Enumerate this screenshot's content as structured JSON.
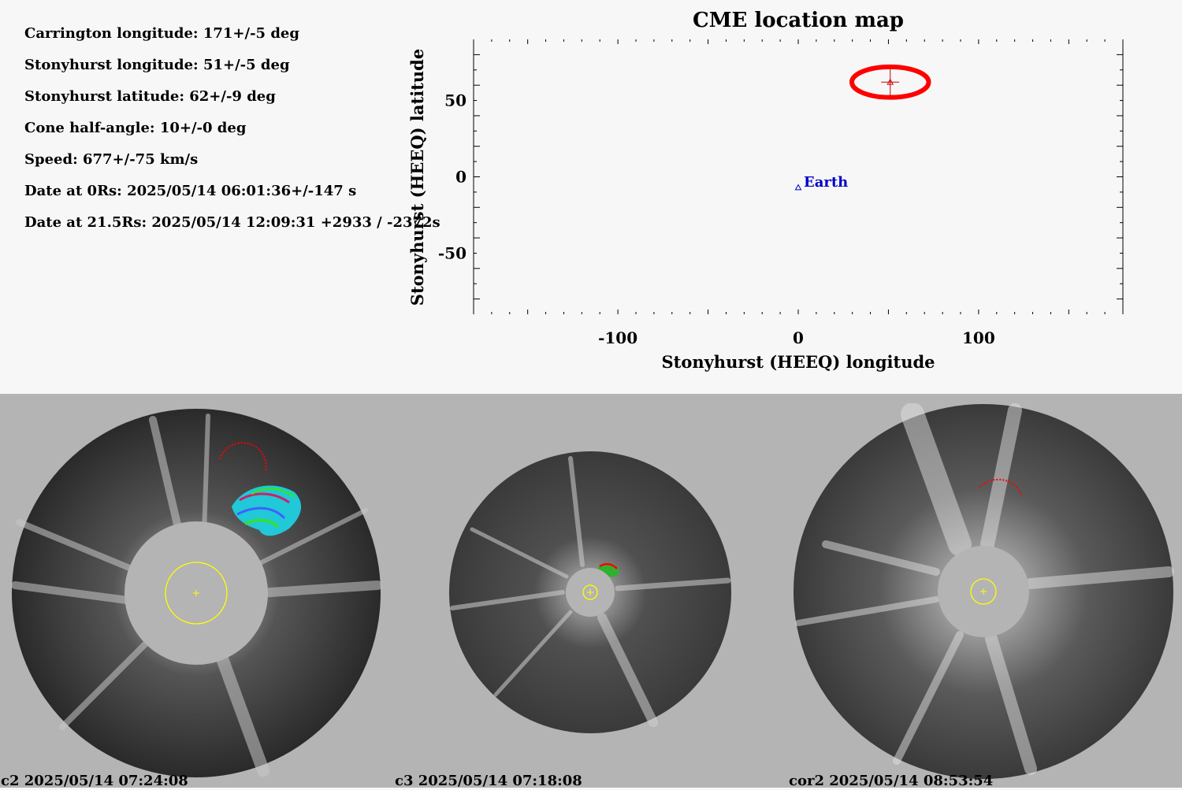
{
  "parameters": [
    "Carrington longitude: 171+/-5 deg",
    "Stonyhurst longitude: 51+/-5 deg",
    "Stonyhurst latitude: 62+/-9 deg",
    "Cone half-angle: 10+/-0 deg",
    "Speed: 677+/-75 km/s",
    "Date at 0Rs: 2025/05/14 06:01:36+/-147 s",
    "Date at 21.5Rs: 2025/05/14 12:09:31 +2933 / -2372s"
  ],
  "chart_data": {
    "type": "scatter",
    "title": "CME location map",
    "xlabel": "Stonyhurst (HEEQ) longitude",
    "ylabel": "Stonyhurst (HEEQ) latitude",
    "xlim": [
      -180,
      180
    ],
    "ylim": [
      -90,
      90
    ],
    "xticks": [
      -100,
      0,
      100
    ],
    "yticks": [
      -50,
      0,
      50
    ],
    "grid": false,
    "points": [
      {
        "label": "Earth",
        "x": 0,
        "y": -7,
        "color": "#0000c8",
        "marker": "triangle"
      },
      {
        "label": "",
        "x": 51,
        "y": 62,
        "xerr": 5,
        "yerr": 9,
        "color": "#cc0000",
        "marker": "triangle"
      }
    ],
    "cone": {
      "center": [
        51,
        62
      ],
      "half_angle": 10,
      "color": "#ff0000"
    }
  },
  "panels": [
    {
      "caption": "c2 2025/05/14 07:24:08"
    },
    {
      "caption": "c3 2025/05/14 07:18:08"
    },
    {
      "caption": "cor2 2025/05/14 08:53:54"
    }
  ],
  "colors": {
    "occulter": "#b4b4b4",
    "sun_limb": "#ffff00",
    "cme_front": "#ff0000",
    "earth": "#0000c8"
  }
}
